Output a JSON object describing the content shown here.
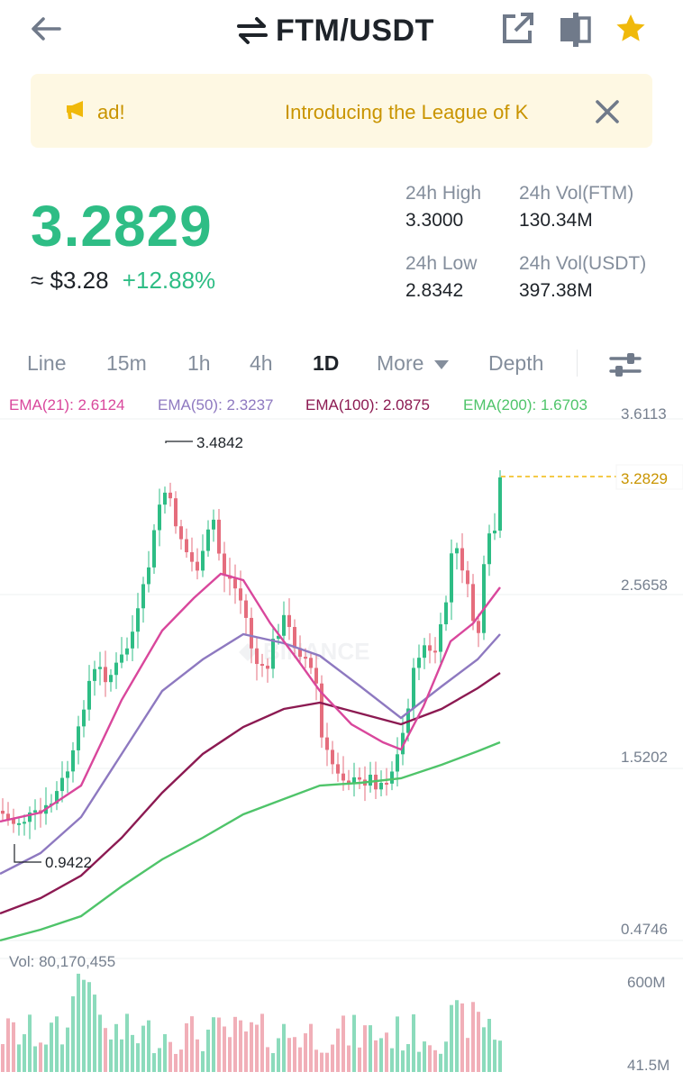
{
  "header": {
    "title": "FTM/USDT"
  },
  "banner": {
    "ticker_left": "ad!",
    "ticker_main": "Introducing the League of K"
  },
  "price": {
    "last": "3.2829",
    "fiat": "≈ $3.28",
    "change": "+12.88%"
  },
  "stats": {
    "high_label": "24h High",
    "high_value": "3.3000",
    "low_label": "24h Low",
    "low_value": "2.8342",
    "vol_base_label": "24h Vol(FTM)",
    "vol_base_value": "130.34M",
    "vol_quote_label": "24h Vol(USDT)",
    "vol_quote_value": "397.38M"
  },
  "tabs": {
    "items": [
      "Line",
      "15m",
      "1h",
      "4h",
      "1D",
      "More",
      "Depth"
    ],
    "active": "1D"
  },
  "ema": {
    "e21": "EMA(21): 2.6124",
    "e50": "EMA(50): 2.3237",
    "e100": "EMA(100): 2.0875",
    "e200": "EMA(200): 1.6703"
  },
  "colors": {
    "up": "#2ebd85",
    "down": "#e56d7d",
    "ema21": "#d9479c",
    "ema50": "#8e79c0",
    "ema100": "#8c1a52",
    "ema200": "#4fc46a",
    "price_line": "#f0b90b"
  },
  "chart_data": {
    "type": "candlestick",
    "interval": "1D",
    "y_ticks": [
      3.6113,
      2.5658,
      1.5202,
      0.4746
    ],
    "ylim": [
      0.4746,
      3.6113
    ],
    "current_price": 3.2829,
    "annotations": {
      "high": 3.4842,
      "low": 0.9422
    },
    "volume": {
      "label": "Vol: 80,170,455",
      "ticks": [
        "600M",
        "41.5M"
      ],
      "ylim": [
        41.5,
        600
      ]
    }
  },
  "icons": {
    "back": "arrow-left-icon",
    "swap": "swap-arrows-icon",
    "share": "share-external-icon",
    "layout": "split-layout-icon",
    "favorite": "star-icon",
    "megaphone": "megaphone-icon",
    "close": "close-icon",
    "settings": "sliders-icon",
    "dropdown": "caret-down-icon"
  }
}
